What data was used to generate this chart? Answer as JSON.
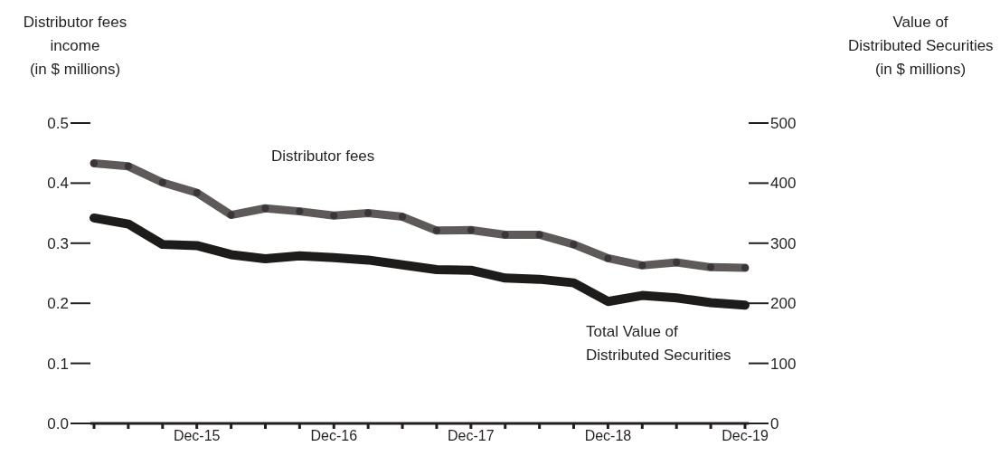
{
  "chart_data": {
    "type": "line",
    "ylabel": "Distributor fees\nincome\n(in $ millions)",
    "y2label": "Value of\nDistributed Securities\n(in $ millions)",
    "categories": [
      null,
      null,
      null,
      "Dec-15",
      null,
      null,
      null,
      "Dec-16",
      null,
      null,
      null,
      "Dec-17",
      null,
      null,
      null,
      "Dec-18",
      null,
      null,
      null,
      "Dec-19"
    ],
    "series": [
      {
        "name": "Distributor fees",
        "color": "#5f5a5a",
        "marker": "circle",
        "values": [
          0.433,
          0.428,
          0.401,
          0.384,
          0.347,
          0.358,
          0.353,
          0.346,
          0.35,
          0.344,
          0.321,
          0.322,
          0.314,
          0.314,
          0.298,
          0.275,
          0.263,
          0.268,
          0.26,
          0.259
        ]
      },
      {
        "name": "Total Value of\nDistributed Securities",
        "color": "#1e1c1b",
        "axis": "y2",
        "values": [
          342,
          332,
          298,
          296,
          281,
          274,
          279,
          276,
          272,
          264,
          256,
          255,
          242,
          240,
          234,
          203,
          213,
          209,
          201,
          197
        ]
      }
    ],
    "ylim": [
      0,
      0.5
    ],
    "yticks": [
      {
        "value": 0,
        "label": "0.0"
      },
      0.1,
      0.2,
      0.3,
      0.4,
      0.5
    ],
    "y2lim": [
      0,
      500
    ],
    "y2ticks": [
      0,
      100,
      200,
      300,
      400,
      500
    ],
    "grid": false,
    "legend": false,
    "line_style": "solid"
  }
}
